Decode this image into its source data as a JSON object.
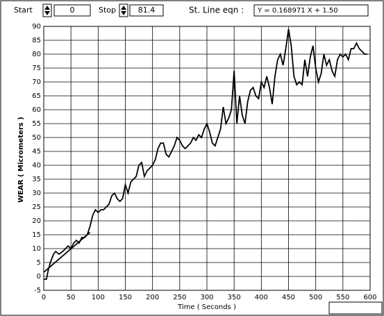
{
  "controls": {
    "start_label": "Start",
    "start_value": "0",
    "stop_label": "Stop",
    "stop_value": "81.4",
    "equation_label": "St. Line eqn :",
    "equation": "Y =  0.168971  X +  1.50"
  },
  "chart_data": {
    "type": "line",
    "xlabel": "Time ( Seconds )",
    "ylabel": "WEAR ( Micrometers )",
    "xlim": [
      0,
      600
    ],
    "xticks": [
      0,
      50,
      100,
      150,
      200,
      250,
      300,
      350,
      400,
      450,
      500,
      550,
      600
    ],
    "ylim": [
      -5,
      90
    ],
    "yticks": [
      -5,
      0,
      5,
      10,
      15,
      20,
      25,
      30,
      35,
      40,
      45,
      50,
      55,
      60,
      65,
      70,
      75,
      80,
      85,
      90
    ],
    "grid": true,
    "series": [
      {
        "color": "#000000",
        "x": [
          0,
          5,
          8,
          12,
          18,
          22,
          28,
          35,
          40,
          45,
          50,
          55,
          60,
          65,
          70,
          75,
          80,
          85,
          90,
          95,
          100,
          105,
          110,
          115,
          120,
          125,
          130,
          135,
          140,
          145,
          150,
          155,
          160,
          165,
          170,
          175,
          180,
          185,
          190,
          195,
          200,
          205,
          210,
          215,
          220,
          225,
          230,
          235,
          240,
          245,
          250,
          255,
          260,
          265,
          270,
          275,
          280,
          285,
          290,
          295,
          300,
          305,
          310,
          315,
          320,
          325,
          330,
          335,
          340,
          345,
          350,
          355,
          360,
          365,
          370,
          375,
          380,
          385,
          390,
          395,
          400,
          405,
          410,
          415,
          420,
          425,
          430,
          435,
          440,
          445,
          450,
          455,
          460,
          465,
          470,
          475,
          480,
          485,
          490,
          495,
          500,
          505,
          510,
          515,
          520,
          525,
          530,
          535,
          540,
          545,
          550,
          555,
          560,
          565,
          570,
          575,
          580,
          585,
          590,
          595
        ],
        "values": [
          -1,
          -1,
          2,
          5,
          8,
          9,
          8,
          9,
          10,
          11,
          10,
          12,
          13,
          12,
          14,
          14,
          15,
          18,
          22,
          24,
          23,
          24,
          24,
          25,
          26,
          29,
          30,
          28,
          27,
          28,
          33,
          30,
          34,
          35,
          36,
          40,
          41,
          36,
          38,
          39,
          40,
          42,
          46,
          48,
          48,
          44,
          43,
          45,
          47,
          50,
          49,
          47,
          46,
          47,
          48,
          50,
          49,
          51,
          50,
          53,
          55,
          52,
          48,
          47,
          50,
          53,
          61,
          55,
          57,
          60,
          74,
          55,
          65,
          58,
          55,
          63,
          67,
          68,
          65,
          64,
          70,
          68,
          72,
          68,
          62,
          72,
          78,
          80,
          76,
          82,
          89,
          83,
          72,
          69,
          70,
          69,
          78,
          72,
          79,
          83,
          75,
          70,
          73,
          80,
          76,
          78,
          74,
          72,
          78,
          80,
          79,
          80,
          78,
          82,
          82,
          84,
          82,
          81,
          80,
          80
        ]
      },
      {
        "color": "#000000",
        "x": [
          0,
          85
        ],
        "values": [
          1.5,
          15.86
        ]
      }
    ]
  }
}
